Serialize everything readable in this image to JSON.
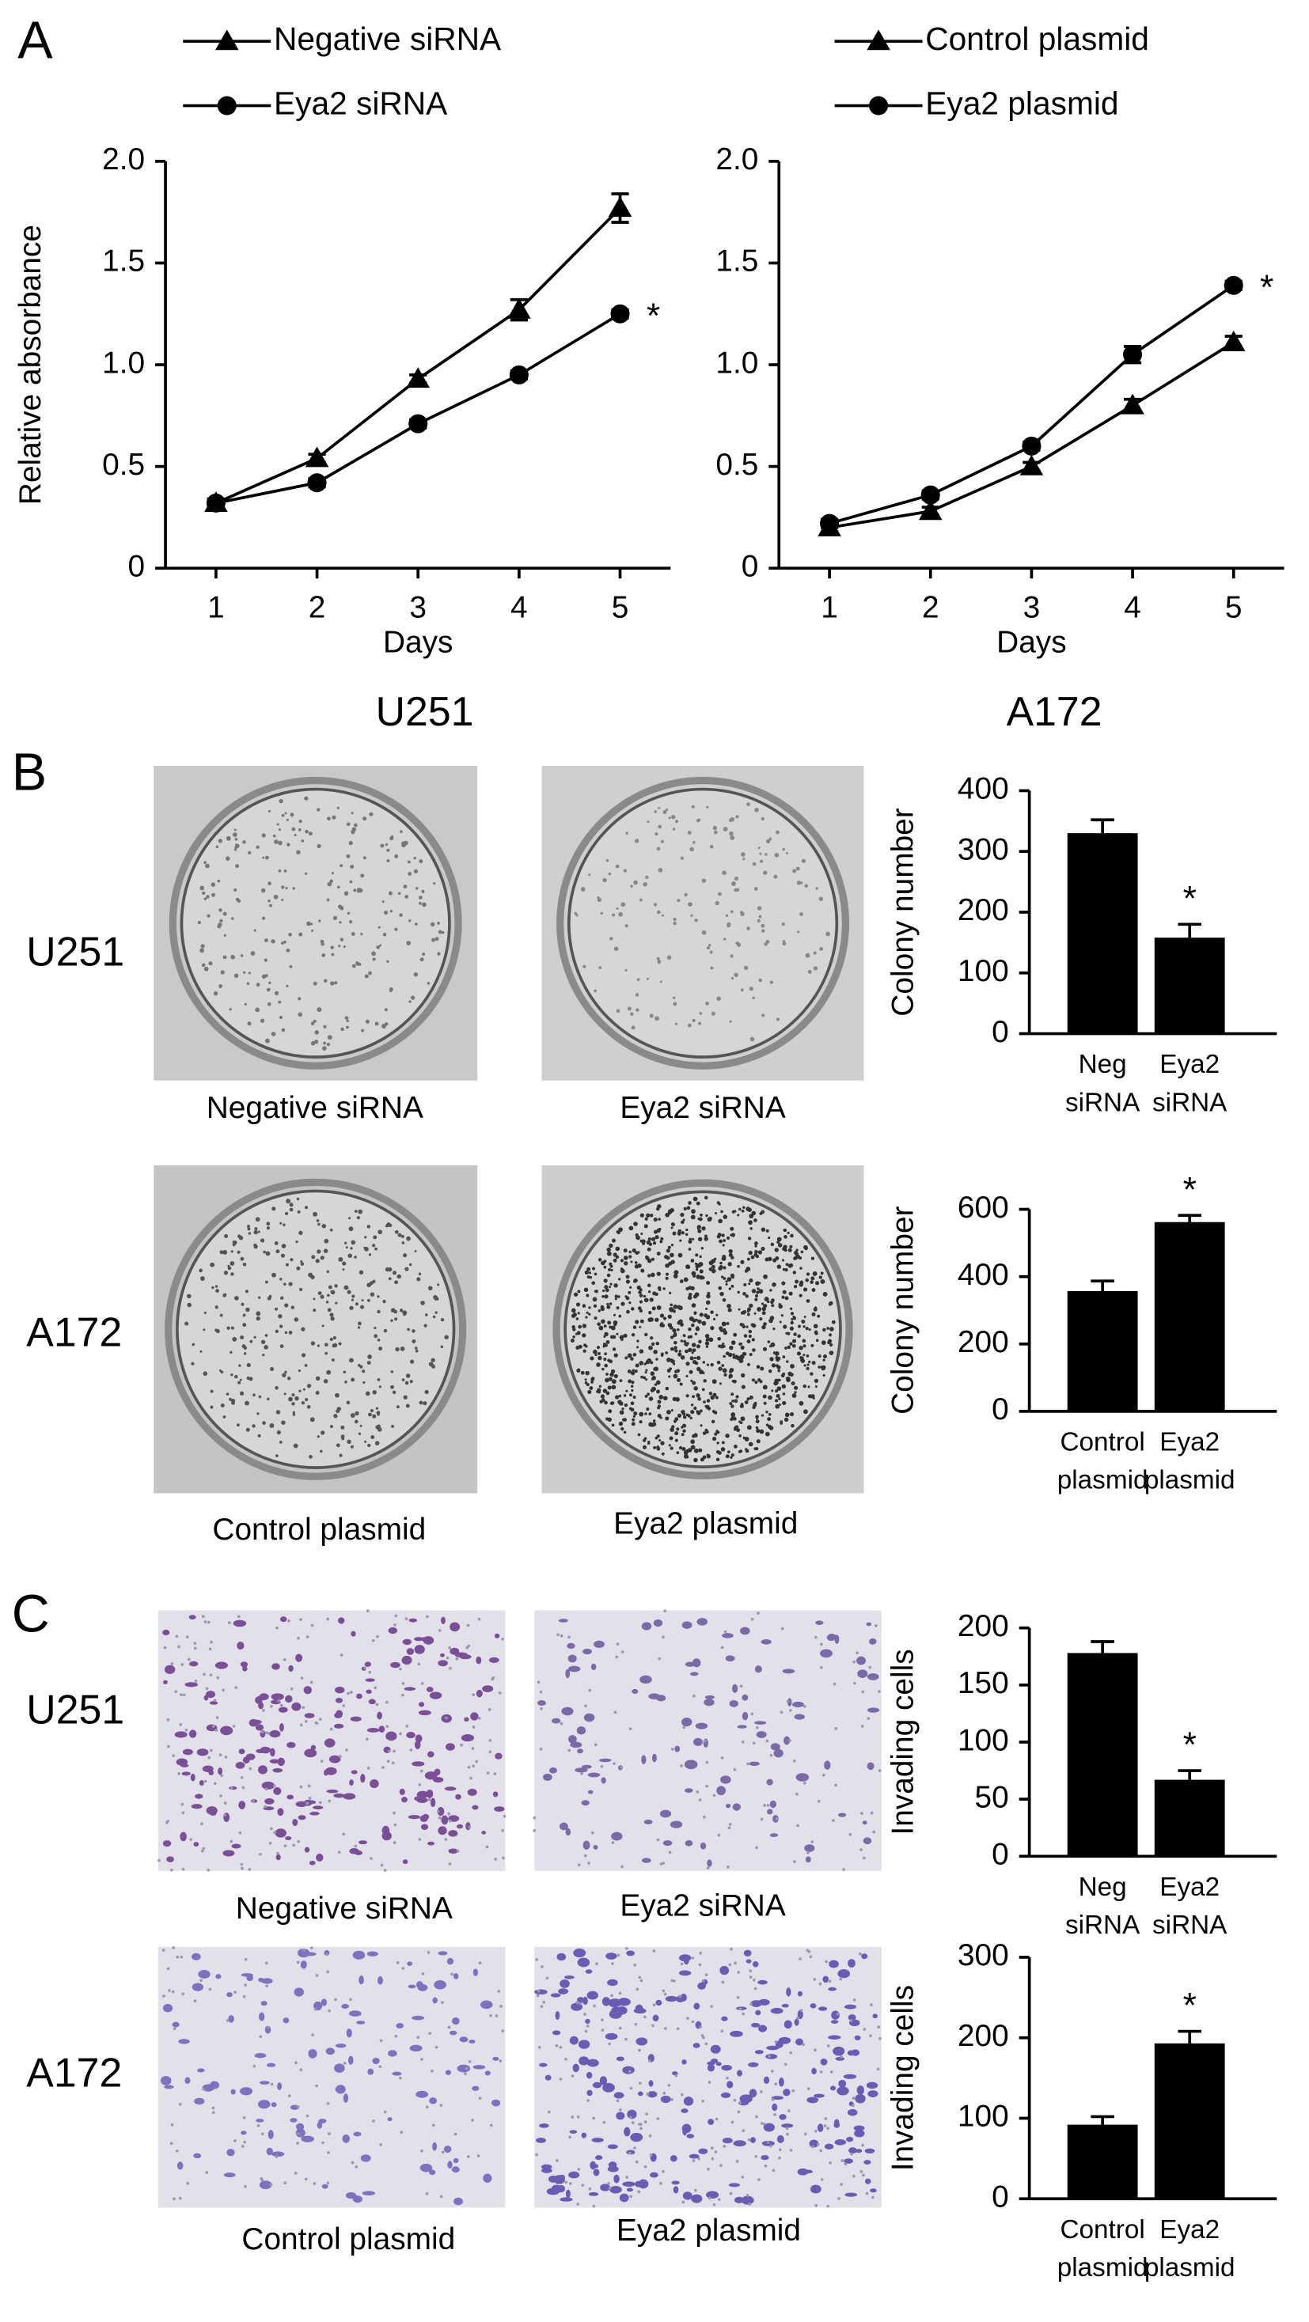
{
  "figure": {
    "panel_labels": [
      "A",
      "B",
      "C"
    ],
    "row_labels": {
      "B": [
        "U251",
        "A172"
      ],
      "C": [
        "U251",
        "A172"
      ]
    },
    "captions": {
      "B": [
        "Negative siRNA",
        "Eya2 siRNA",
        "Control plasmid",
        "Eya2 plasmid"
      ],
      "C": [
        "Negative siRNA",
        "Eya2 siRNA",
        "Control plasmid",
        "Eya2 plasmid"
      ]
    }
  },
  "chart_data": [
    {
      "type": "line",
      "subtitle": "U251",
      "xlabel": "Days",
      "ylabel": "Relative absorbance",
      "x": [
        1,
        2,
        3,
        4,
        5
      ],
      "xlim": [
        0.5,
        5.5
      ],
      "xticks": [
        1,
        2,
        3,
        4,
        5
      ],
      "ylim": [
        0,
        2
      ],
      "yticks": [
        0,
        0.5,
        {
          "value": 1,
          "label": "1.0"
        },
        1.5,
        {
          "value": 2,
          "label": "2.0"
        }
      ],
      "series": [
        {
          "name": "Negative siRNA",
          "color": "#000000",
          "marker": "triangle",
          "values": [
            0.32,
            0.54,
            0.93,
            1.27,
            1.77
          ],
          "errors": [
            0.02,
            0.02,
            0.02,
            0.05,
            0.07
          ]
        },
        {
          "name": "Eya2 siRNA",
          "color": "#000000",
          "marker": "circle",
          "values": [
            0.32,
            0.42,
            0.71,
            0.95,
            1.25
          ],
          "errors": [
            0.02,
            0.02,
            0.02,
            0.02,
            0.02
          ]
        }
      ],
      "annotations": [
        "*"
      ]
    },
    {
      "type": "line",
      "subtitle": "A172",
      "xlabel": "Days",
      "x": [
        1,
        2,
        3,
        4,
        5
      ],
      "xlim": [
        0.5,
        5.5
      ],
      "xticks": [
        1,
        2,
        3,
        4,
        5
      ],
      "ylim": [
        0,
        2
      ],
      "yticks": [
        0,
        0.5,
        {
          "value": 1,
          "label": "1.0"
        },
        1.5,
        {
          "value": 2,
          "label": "2.0"
        }
      ],
      "series": [
        {
          "name": "Control plasmid",
          "color": "#000000",
          "marker": "triangle",
          "values": [
            0.2,
            0.28,
            0.5,
            0.8,
            1.11
          ],
          "errors": [
            0.02,
            0.02,
            0.02,
            0.03,
            0.03
          ]
        },
        {
          "name": "Eya2 plasmid",
          "color": "#000000",
          "marker": "circle",
          "values": [
            0.22,
            0.36,
            0.6,
            1.05,
            1.39
          ],
          "errors": [
            0.02,
            0.02,
            0.02,
            0.04,
            0.02
          ]
        }
      ],
      "annotations": [
        "*"
      ]
    },
    {
      "type": "bar",
      "ylabel": "Colony number",
      "categories": [
        "Neg siRNA",
        "Eya2 siRNA"
      ],
      "values": [
        330,
        158
      ],
      "errors": [
        22,
        22
      ],
      "color": "#000000",
      "ylim": [
        0,
        400
      ],
      "yticks": [
        0,
        100,
        200,
        300,
        400
      ],
      "annotations": [
        "*"
      ]
    },
    {
      "type": "bar",
      "ylabel": "Colony number",
      "categories": [
        "Control plasmid",
        "Eya2 plasmid"
      ],
      "values": [
        357,
        562
      ],
      "errors": [
        30,
        20
      ],
      "color": "#000000",
      "ylim": [
        0,
        600
      ],
      "yticks": [
        0,
        200,
        400,
        600
      ],
      "annotations": [
        "*"
      ]
    },
    {
      "type": "bar",
      "ylabel": "Invading cells",
      "categories": [
        "Neg siRNA",
        "Eya2 siRNA"
      ],
      "values": [
        178,
        67
      ],
      "errors": [
        10,
        8
      ],
      "color": "#000000",
      "ylim": [
        0,
        200
      ],
      "yticks": [
        0,
        50,
        100,
        150,
        200
      ],
      "annotations": [
        "*"
      ]
    },
    {
      "type": "bar",
      "ylabel": "Invading cells",
      "categories": [
        "Control plasmid",
        "Eya2 plasmid"
      ],
      "values": [
        92,
        193
      ],
      "errors": [
        10,
        15
      ],
      "color": "#000000",
      "ylim": [
        0,
        300
      ],
      "yticks": [
        0,
        100,
        200,
        300
      ],
      "annotations": [
        "*"
      ]
    }
  ]
}
